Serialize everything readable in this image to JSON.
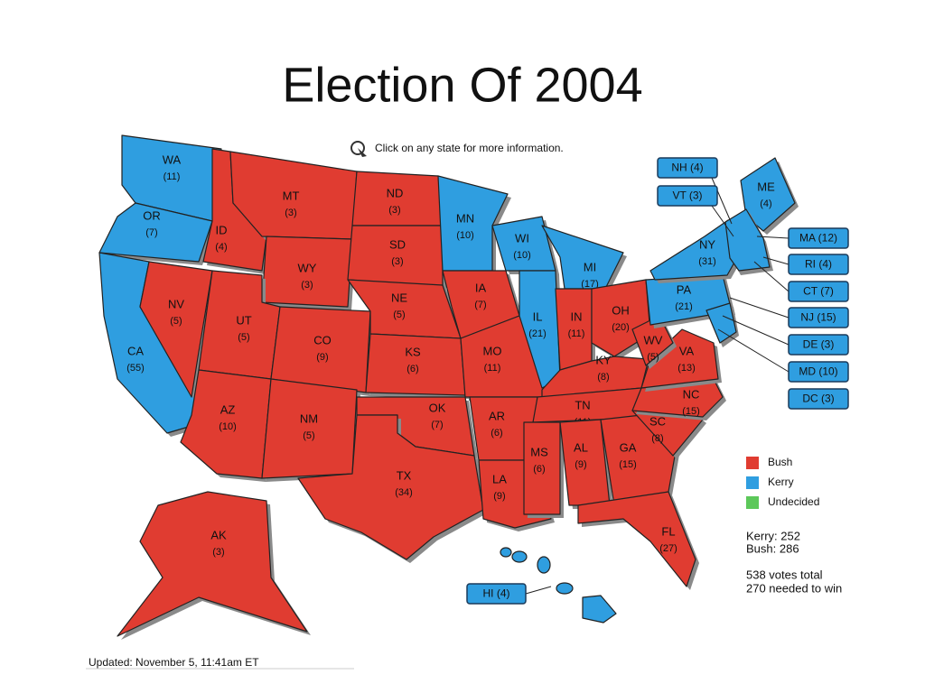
{
  "title": "Election Of 2004",
  "instruction": "Click on any state for more information.",
  "states": [
    {
      "abbr": "WA",
      "votes": "(11)",
      "color": "#2f9ee0"
    },
    {
      "abbr": "OR",
      "votes": "(7)",
      "color": "#2f9ee0"
    },
    {
      "abbr": "CA",
      "votes": "(55)",
      "color": "#2f9ee0"
    },
    {
      "abbr": "ID",
      "votes": "(4)",
      "color": "#e03c31"
    },
    {
      "abbr": "MT",
      "votes": "(3)",
      "color": "#e03c31"
    },
    {
      "abbr": "WY",
      "votes": "(3)",
      "color": "#e03c31"
    },
    {
      "abbr": "NV",
      "votes": "(5)",
      "color": "#e03c31"
    },
    {
      "abbr": "UT",
      "votes": "(5)",
      "color": "#e03c31"
    },
    {
      "abbr": "AZ",
      "votes": "(10)",
      "color": "#e03c31"
    },
    {
      "abbr": "CO",
      "votes": "(9)",
      "color": "#e03c31"
    },
    {
      "abbr": "NM",
      "votes": "(5)",
      "color": "#e03c31"
    },
    {
      "abbr": "ND",
      "votes": "(3)",
      "color": "#e03c31"
    },
    {
      "abbr": "SD",
      "votes": "(3)",
      "color": "#e03c31"
    },
    {
      "abbr": "NE",
      "votes": "(5)",
      "color": "#e03c31"
    },
    {
      "abbr": "KS",
      "votes": "(6)",
      "color": "#e03c31"
    },
    {
      "abbr": "OK",
      "votes": "(7)",
      "color": "#e03c31"
    },
    {
      "abbr": "TX",
      "votes": "(34)",
      "color": "#e03c31"
    },
    {
      "abbr": "MN",
      "votes": "(10)",
      "color": "#2f9ee0"
    },
    {
      "abbr": "IA",
      "votes": "(7)",
      "color": "#e03c31"
    },
    {
      "abbr": "MO",
      "votes": "(11)",
      "color": "#e03c31"
    },
    {
      "abbr": "AR",
      "votes": "(6)",
      "color": "#e03c31"
    },
    {
      "abbr": "LA",
      "votes": "(9)",
      "color": "#e03c31"
    },
    {
      "abbr": "WI",
      "votes": "(10)",
      "color": "#2f9ee0"
    },
    {
      "abbr": "MI",
      "votes": "(17)",
      "color": "#2f9ee0"
    },
    {
      "abbr": "IL",
      "votes": "(21)",
      "color": "#2f9ee0"
    },
    {
      "abbr": "IN",
      "votes": "(11)",
      "color": "#e03c31"
    },
    {
      "abbr": "OH",
      "votes": "(20)",
      "color": "#e03c31"
    },
    {
      "abbr": "KY",
      "votes": "(8)",
      "color": "#e03c31"
    },
    {
      "abbr": "TN",
      "votes": "(11)",
      "color": "#e03c31"
    },
    {
      "abbr": "MS",
      "votes": "(6)",
      "color": "#e03c31"
    },
    {
      "abbr": "AL",
      "votes": "(9)",
      "color": "#e03c31"
    },
    {
      "abbr": "GA",
      "votes": "(15)",
      "color": "#e03c31"
    },
    {
      "abbr": "SC",
      "votes": "(8)",
      "color": "#e03c31"
    },
    {
      "abbr": "FL",
      "votes": "(27)",
      "color": "#e03c31"
    },
    {
      "abbr": "NC",
      "votes": "(15)",
      "color": "#e03c31"
    },
    {
      "abbr": "VA",
      "votes": "(13)",
      "color": "#e03c31"
    },
    {
      "abbr": "WV",
      "votes": "(5)",
      "color": "#e03c31"
    },
    {
      "abbr": "PA",
      "votes": "(21)",
      "color": "#2f9ee0"
    },
    {
      "abbr": "NY",
      "votes": "(31)",
      "color": "#2f9ee0"
    },
    {
      "abbr": "ME",
      "votes": "(4)",
      "color": "#2f9ee0"
    },
    {
      "abbr": "AK",
      "votes": "(3)",
      "color": "#e03c31"
    }
  ],
  "callouts": [
    {
      "label": "NH (4)",
      "color": "#2f9ee0"
    },
    {
      "label": "VT (3)",
      "color": "#2f9ee0"
    },
    {
      "label": "MA (12)",
      "color": "#2f9ee0"
    },
    {
      "label": "RI (4)",
      "color": "#2f9ee0"
    },
    {
      "label": "CT (7)",
      "color": "#2f9ee0"
    },
    {
      "label": "NJ (15)",
      "color": "#2f9ee0"
    },
    {
      "label": "DE (3)",
      "color": "#2f9ee0"
    },
    {
      "label": "MD (10)",
      "color": "#2f9ee0"
    },
    {
      "label": "DC (3)",
      "color": "#2f9ee0"
    },
    {
      "label": "HI (4)",
      "color": "#2f9ee0"
    }
  ],
  "legend": [
    {
      "label": "Bush",
      "color": "#e03c31"
    },
    {
      "label": "Kerry",
      "color": "#2f9ee0"
    },
    {
      "label": "Undecided",
      "color": "#5cc85a"
    }
  ],
  "totals": [
    "Kerry: 252",
    "Bush: 286",
    "538 votes total",
    "270 needed to win"
  ],
  "updated": "Updated: November 5, 11:41am ET"
}
